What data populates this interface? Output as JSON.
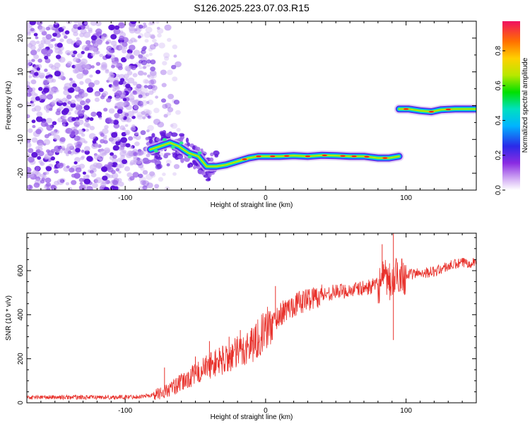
{
  "title": "S126.2025.223.07.03.R15",
  "colors": {
    "snr_line": "#e8312b",
    "dot_dark": "#5a0fd8",
    "dot_mid": "#9a62e8",
    "dot_light": "#c9aef2",
    "track_core": "#e81e1e"
  },
  "chart_data": [
    {
      "type": "heatmap",
      "name": "spectrogram",
      "xlabel": "Height of straight line (km)",
      "ylabel": "Frequency (Hz)",
      "xlim": [
        -170,
        150
      ],
      "ylim": [
        -25,
        25
      ],
      "xticks": [
        -100,
        0,
        100
      ],
      "xtick_labels": [
        "-100",
        "0",
        "100"
      ],
      "yticks": [
        -20,
        -10,
        0,
        10,
        20
      ],
      "ytick_labels": [
        "-20",
        "-10",
        "0",
        "10",
        "20"
      ],
      "colorbar": {
        "label": "Normalized spectral amplitude",
        "range": [
          0,
          0.97
        ],
        "ticks": [
          0,
          0.2,
          0.4,
          0.6,
          0.8
        ],
        "tick_labels": [
          "0.0",
          "0.2",
          "0.4",
          "0.6",
          "0.8"
        ]
      },
      "noise_region": {
        "x": [
          -170,
          -80
        ],
        "y": [
          -25,
          25
        ]
      },
      "ridge": [
        {
          "x": -82,
          "y": -13
        },
        {
          "x": -75,
          "y": -12
        },
        {
          "x": -68,
          "y": -11
        },
        {
          "x": -62,
          "y": -12
        },
        {
          "x": -55,
          "y": -14
        },
        {
          "x": -48,
          "y": -15
        },
        {
          "x": -42,
          "y": -18
        },
        {
          "x": -35,
          "y": -18
        },
        {
          "x": -28,
          "y": -17.5
        },
        {
          "x": -20,
          "y": -16.5
        },
        {
          "x": -12,
          "y": -15.5
        },
        {
          "x": -5,
          "y": -15
        },
        {
          "x": 0,
          "y": -15
        },
        {
          "x": 10,
          "y": -15
        },
        {
          "x": 20,
          "y": -14.8
        },
        {
          "x": 30,
          "y": -15
        },
        {
          "x": 40,
          "y": -14.7
        },
        {
          "x": 50,
          "y": -14.8
        },
        {
          "x": 60,
          "y": -15
        },
        {
          "x": 70,
          "y": -15
        },
        {
          "x": 80,
          "y": -15.5
        },
        {
          "x": 88,
          "y": -15.5
        },
        {
          "x": 95,
          "y": -15
        }
      ],
      "ridge2": [
        {
          "x": 95,
          "y": -1
        },
        {
          "x": 102,
          "y": -1
        },
        {
          "x": 110,
          "y": -1.5
        },
        {
          "x": 118,
          "y": -1.8
        },
        {
          "x": 125,
          "y": -1.2
        },
        {
          "x": 135,
          "y": -1
        },
        {
          "x": 150,
          "y": -1
        }
      ]
    },
    {
      "type": "line",
      "name": "snr",
      "xlabel": "Height of straight line (km)",
      "ylabel": "SNR (10 * v/v)",
      "xlim": [
        -170,
        150
      ],
      "ylim": [
        0,
        770
      ],
      "xticks": [
        -100,
        0,
        100
      ],
      "xtick_labels": [
        "-100",
        "0",
        "100"
      ],
      "yticks": [
        0,
        200,
        400,
        600
      ],
      "ytick_labels": [
        "0",
        "200",
        "400",
        "600"
      ],
      "series": [
        {
          "name": "SNR",
          "x": [
            -170,
            -150,
            -130,
            -110,
            -90,
            -80,
            -70,
            -60,
            -50,
            -40,
            -30,
            -20,
            -10,
            0,
            10,
            20,
            30,
            40,
            50,
            60,
            70,
            80,
            85,
            90,
            95,
            100,
            110,
            120,
            130,
            140,
            150
          ],
          "values": [
            25,
            25,
            25,
            25,
            28,
            35,
            55,
            90,
            130,
            170,
            195,
            225,
            265,
            330,
            400,
            445,
            470,
            490,
            505,
            510,
            520,
            535,
            560,
            540,
            590,
            580,
            590,
            595,
            620,
            635,
            640
          ]
        }
      ],
      "spikes": [
        {
          "x": -72,
          "y": 160
        },
        {
          "x": -50,
          "y": 210
        },
        {
          "x": -40,
          "y": 280
        },
        {
          "x": -33,
          "y": 250
        },
        {
          "x": -26,
          "y": 300
        },
        {
          "x": -18,
          "y": 330
        },
        {
          "x": -10,
          "y": 340
        },
        {
          "x": 7,
          "y": 530
        },
        {
          "x": 12,
          "y": 390
        },
        {
          "x": 83,
          "y": 720
        },
        {
          "x": 91,
          "y": 770
        },
        {
          "x": 91,
          "y": 285
        },
        {
          "x": 99,
          "y": 490
        }
      ]
    }
  ]
}
